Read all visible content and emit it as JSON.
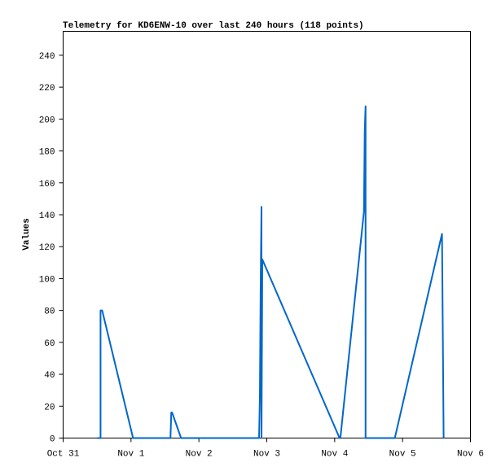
{
  "chart_data": {
    "type": "line",
    "title": "Telemetry for KD6ENW-10 over last 240 hours (118 points)",
    "y_label": "Values",
    "x": [
      0.503,
      0.551,
      0.551,
      0.575,
      1.03,
      1.581,
      1.593,
      1.605,
      1.737,
      2.886,
      2.898,
      2.91,
      2.922,
      2.922,
      2.934,
      4.072,
      4.084,
      4.431,
      4.443,
      4.455,
      4.455,
      4.467,
      4.886,
      5.581,
      5.593,
      5.605
    ],
    "series": [
      {
        "name": "Values",
        "color": "#0066cc",
        "values": [
          0,
          0,
          80,
          80,
          0,
          0,
          16,
          16,
          0,
          0,
          25,
          97,
          145,
          0,
          112,
          0,
          0,
          142,
          193,
          208,
          0,
          0,
          0,
          128,
          65,
          0
        ]
      }
    ],
    "xlim": [
      0,
      6
    ],
    "xticks": [
      {
        "value": 0,
        "label": "Oct 31"
      },
      {
        "value": 1,
        "label": "Nov 1"
      },
      {
        "value": 2,
        "label": "Nov 2"
      },
      {
        "value": 3,
        "label": "Nov 3"
      },
      {
        "value": 4,
        "label": "Nov 4"
      },
      {
        "value": 5,
        "label": "Nov 5"
      },
      {
        "value": 6,
        "label": "Nov 6"
      }
    ],
    "ylim": [
      0,
      255
    ],
    "yticks": [
      0,
      20,
      40,
      60,
      80,
      100,
      120,
      140,
      160,
      180,
      200,
      220,
      240
    ]
  }
}
